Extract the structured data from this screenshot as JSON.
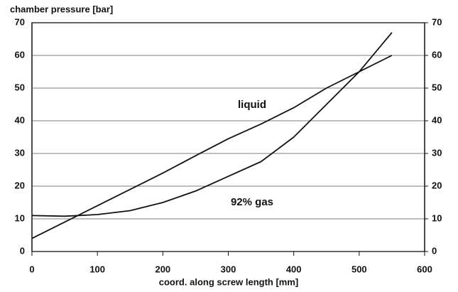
{
  "chart_data": {
    "type": "line",
    "title": "chamber pressure [bar]",
    "x_label": "coord. along screw length [mm]",
    "x": [
      0,
      50,
      100,
      150,
      200,
      250,
      300,
      350,
      400,
      450,
      500,
      550
    ],
    "series": [
      {
        "name": "liquid",
        "color": "#111111",
        "values": [
          4,
          9,
          14,
          19,
          24,
          29.3,
          34.5,
          39,
          44,
          50,
          55,
          60
        ]
      },
      {
        "name": "92% gas",
        "color": "#111111",
        "values": [
          11,
          10.8,
          11.3,
          12.5,
          15,
          18.5,
          23,
          27.5,
          35,
          45,
          55,
          67
        ]
      }
    ],
    "xlim": [
      0,
      600
    ],
    "xticks": [
      0,
      100,
      200,
      300,
      400,
      500,
      600
    ],
    "ylim": [
      0,
      70
    ],
    "yticks": [
      0,
      10,
      20,
      30,
      40,
      50,
      60,
      70
    ],
    "y2lim": [
      0,
      70
    ],
    "y2ticks": [
      0,
      10,
      20,
      30,
      40,
      50,
      60,
      70
    ],
    "grid": true
  }
}
